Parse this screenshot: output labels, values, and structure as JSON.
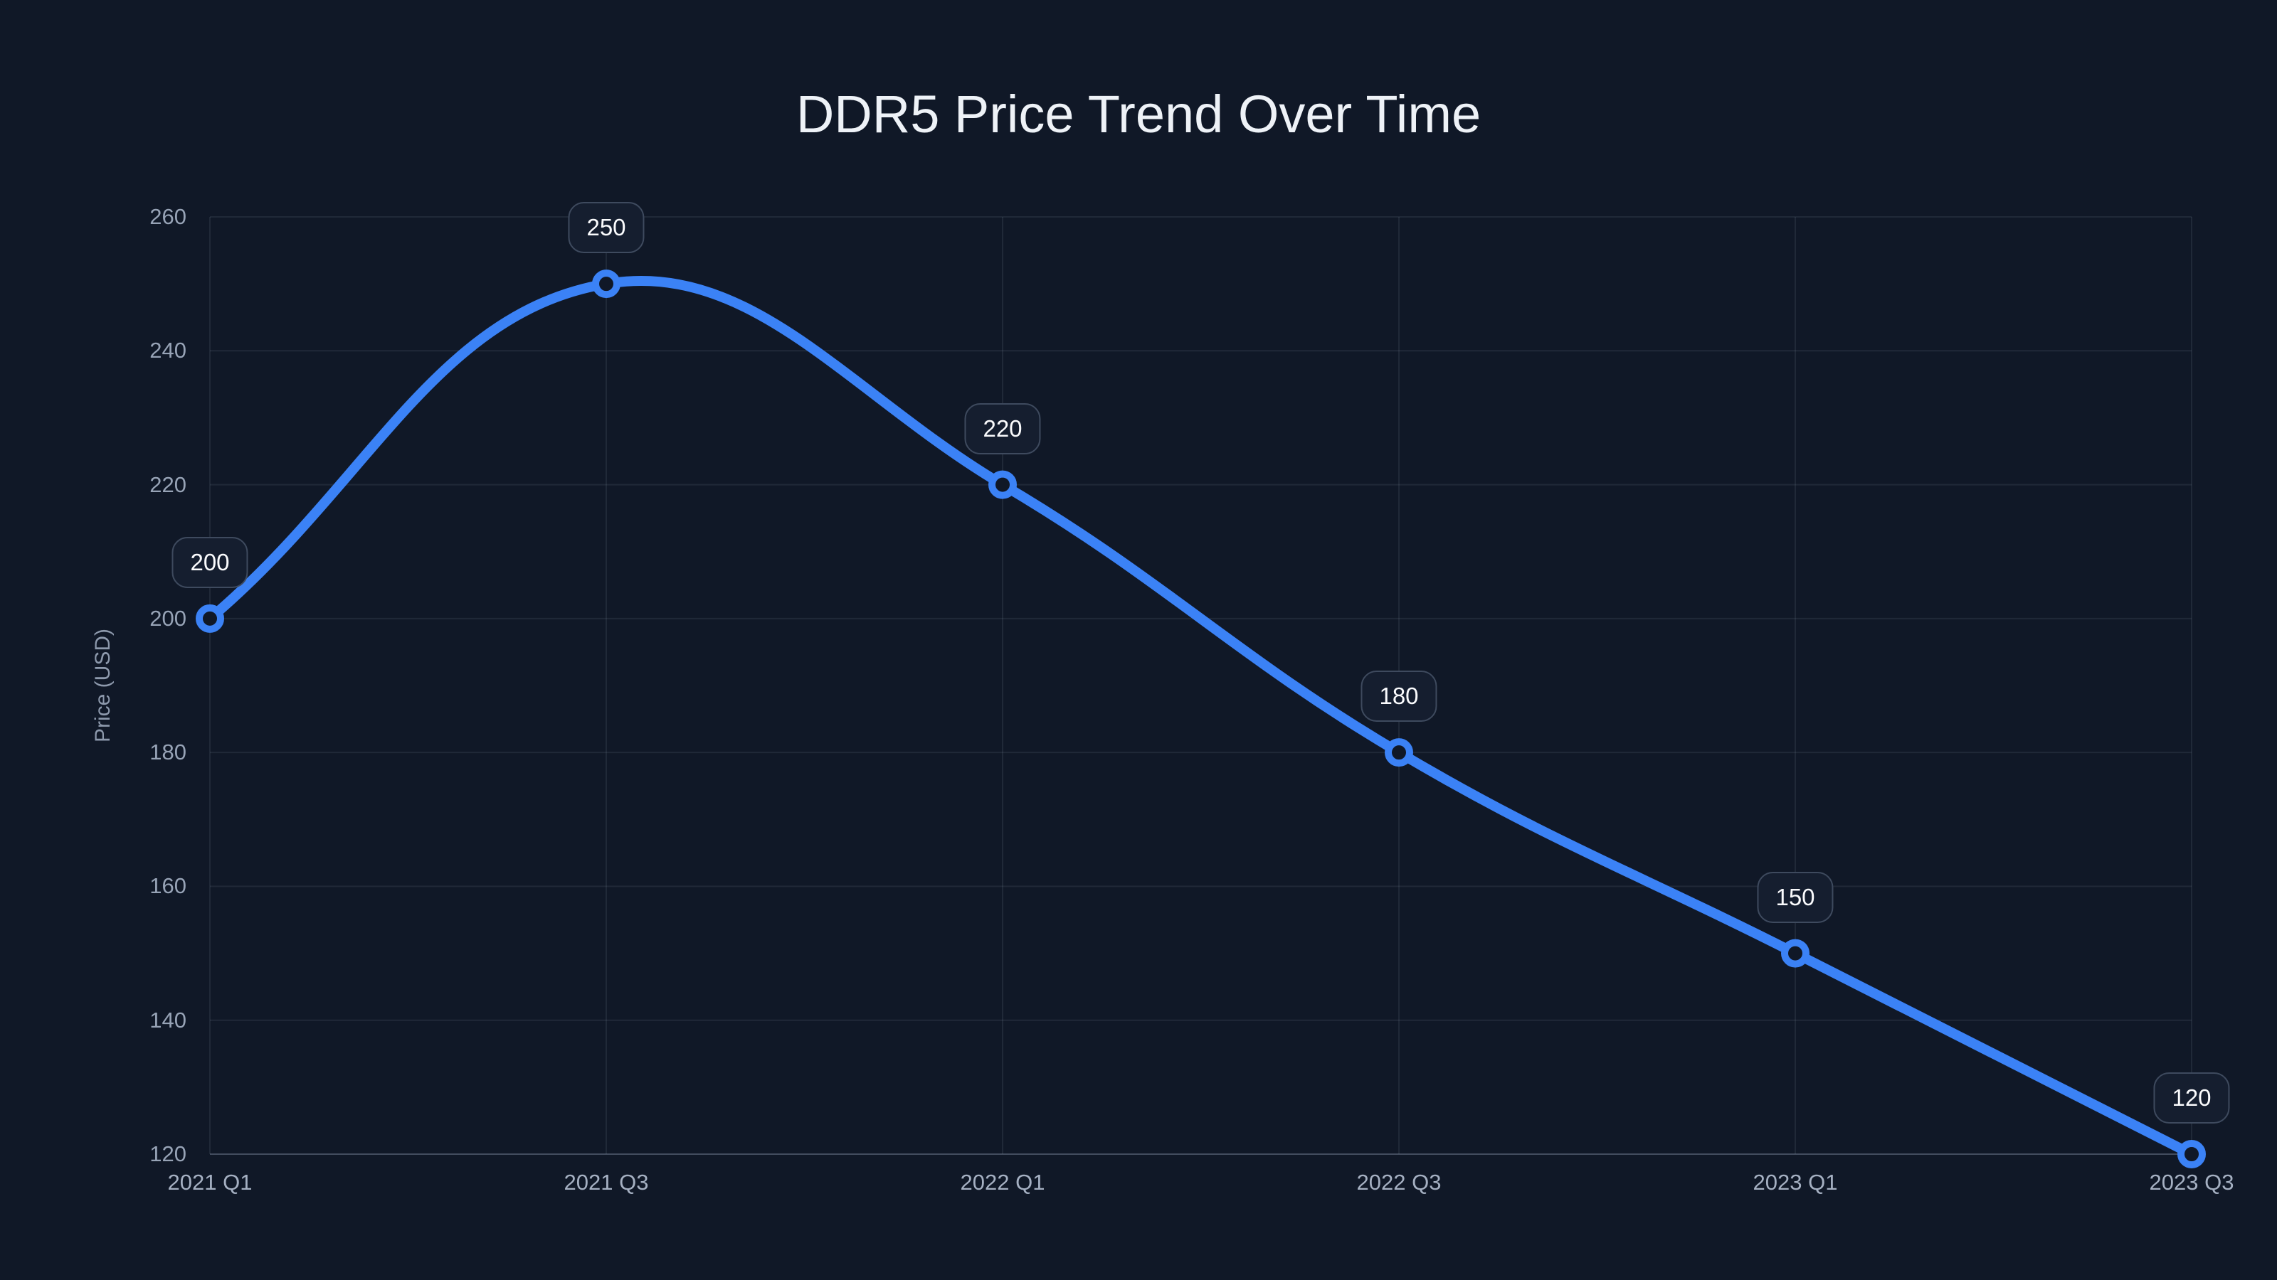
{
  "chart_data": {
    "type": "line",
    "title": "DDR5 Price Trend Over Time",
    "xlabel": "",
    "ylabel": "Price (USD)",
    "categories": [
      "2021 Q1",
      "2021 Q3",
      "2022 Q1",
      "2022 Q3",
      "2023 Q1",
      "2023 Q3"
    ],
    "series": [
      {
        "name": "DDR5 Price",
        "values": [
          200,
          250,
          220,
          180,
          150,
          120
        ]
      }
    ],
    "point_labels": [
      "200",
      "250",
      "220",
      "180",
      "150",
      "120"
    ],
    "y_ticks": [
      120,
      140,
      160,
      180,
      200,
      220,
      240,
      260
    ],
    "ylim": [
      120,
      260
    ],
    "grid": true,
    "legend": false,
    "curve": "smooth"
  },
  "colors": {
    "background": "#101827",
    "line": "#3b82f6",
    "marker_ring": "#3b82f6",
    "marker_fill": "#101827",
    "grid": "rgba(148,163,184,0.12)",
    "axis_border": "rgba(148,163,184,0.30)",
    "tick_text": "#97a3b6",
    "badge_background": "#151e2f",
    "badge_border": "#3e4a5e",
    "badge_text": "#fafbfd",
    "title_text": "#eef2f7"
  }
}
